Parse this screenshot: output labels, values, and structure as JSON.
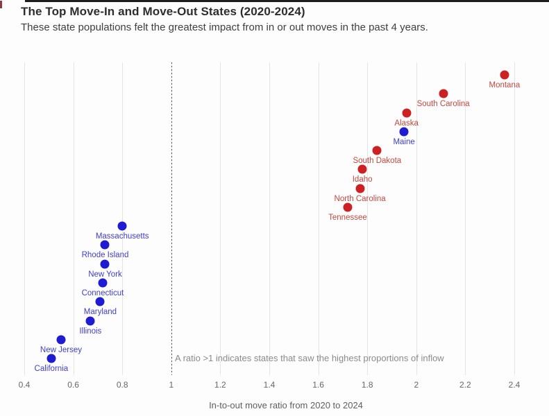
{
  "header": {
    "title": "The Top Move-In and Move-Out States (2020-2024)",
    "subtitle": "These state populations felt the greatest impact from in or out moves in the past 4 years."
  },
  "chart_data": {
    "type": "scatter",
    "title": "The Top Move-In and Move-Out States (2020-2024)",
    "subtitle": "These state populations felt the greatest impact from in or out moves in the past 4 years.",
    "xlabel": "In-to-out move ratio from 2020 to 2024",
    "ylabel": "",
    "xlim": [
      0.38,
      2.45
    ],
    "grid": "vertical-only",
    "legend": "none",
    "annotation": "A ratio >1 indicates states that saw the highest proportions of inflow",
    "reference_line": {
      "value": 1,
      "style": "dotted"
    },
    "x_ticks": [
      {
        "value": 0.4,
        "label": "0.4"
      },
      {
        "value": 0.6,
        "label": "0.6"
      },
      {
        "value": 0.8,
        "label": "0.8"
      },
      {
        "value": 1.0,
        "label": "1"
      },
      {
        "value": 1.2,
        "label": "1.2"
      },
      {
        "value": 1.4,
        "label": "1.4"
      },
      {
        "value": 1.6,
        "label": "1.6"
      },
      {
        "value": 1.8,
        "label": "1.8"
      },
      {
        "value": 2.0,
        "label": "2"
      },
      {
        "value": 2.2,
        "label": "2.2"
      },
      {
        "value": 2.4,
        "label": "2.4"
      }
    ],
    "colors": {
      "red_dot": "#cc2022",
      "red_label": "#c4473f",
      "blue_dot": "#1e1bd1",
      "blue_label": "#3e3ecc"
    },
    "points": [
      {
        "state": "Montana",
        "ratio": 2.36,
        "color": "red"
      },
      {
        "state": "South Carolina",
        "ratio": 2.11,
        "color": "red"
      },
      {
        "state": "Alaska",
        "ratio": 1.96,
        "color": "red"
      },
      {
        "state": "Maine",
        "ratio": 1.95,
        "color": "blue"
      },
      {
        "state": "South Dakota",
        "ratio": 1.84,
        "color": "red"
      },
      {
        "state": "Idaho",
        "ratio": 1.78,
        "color": "red"
      },
      {
        "state": "North Carolina",
        "ratio": 1.77,
        "color": "red"
      },
      {
        "state": "Tennessee",
        "ratio": 1.72,
        "color": "red"
      },
      {
        "state": "Massachusetts",
        "ratio": 0.8,
        "color": "blue"
      },
      {
        "state": "Rhode Island",
        "ratio": 0.73,
        "color": "blue"
      },
      {
        "state": "New York",
        "ratio": 0.73,
        "color": "blue"
      },
      {
        "state": "Connecticut",
        "ratio": 0.72,
        "color": "blue"
      },
      {
        "state": "Maryland",
        "ratio": 0.71,
        "color": "blue"
      },
      {
        "state": "Illinois",
        "ratio": 0.67,
        "color": "blue"
      },
      {
        "state": "New Jersey",
        "ratio": 0.55,
        "color": "blue"
      },
      {
        "state": "California",
        "ratio": 0.51,
        "color": "blue"
      }
    ]
  }
}
